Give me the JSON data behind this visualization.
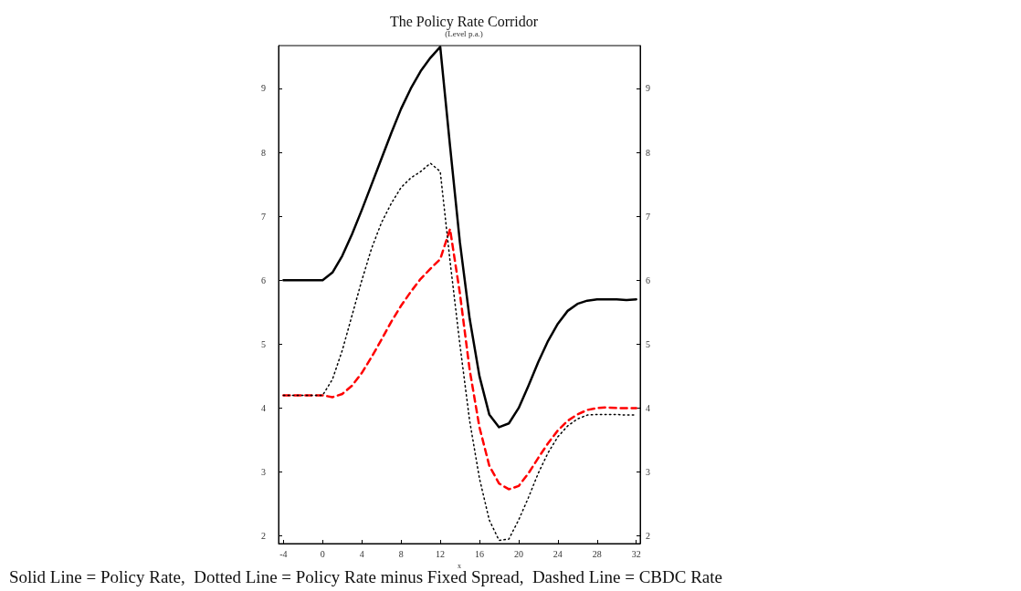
{
  "chart_data": {
    "type": "line",
    "title": "The Policy Rate Corridor",
    "subtitle": "(Level p.a.)",
    "xlabel": "x",
    "annotations": [
      "Solid Line = Policy Rate,  Dotted Line = Policy Rate minus Fixed Spread,  Dashed Line = CBDC Rate"
    ],
    "x": [
      -4,
      -3,
      -2,
      -1,
      0,
      1,
      2,
      3,
      4,
      5,
      6,
      7,
      8,
      9,
      10,
      11,
      12,
      13,
      14,
      15,
      16,
      17,
      18,
      19,
      20,
      21,
      22,
      23,
      24,
      25,
      26,
      27,
      28,
      29,
      30,
      31,
      32
    ],
    "series": [
      {
        "color": "#000000",
        "line_style": "solid",
        "values": [
          6,
          6,
          6,
          6,
          6,
          6.12,
          6.38,
          6.72,
          7.1,
          7.5,
          7.9,
          8.3,
          8.68,
          9.0,
          9.27,
          9.48,
          9.65,
          8.1,
          6.6,
          5.4,
          4.5,
          3.9,
          3.7,
          3.76,
          4.0,
          4.35,
          4.72,
          5.05,
          5.32,
          5.52,
          5.63,
          5.68,
          5.7,
          5.7,
          5.7,
          5.69,
          5.7
        ]
      },
      {
        "color": "#000000",
        "line_style": "dotted",
        "values": [
          4.2,
          4.2,
          4.2,
          4.2,
          4.2,
          4.45,
          4.9,
          5.45,
          6.0,
          6.5,
          6.9,
          7.2,
          7.45,
          7.6,
          7.7,
          7.83,
          7.7,
          6.3,
          5.0,
          3.8,
          2.9,
          2.25,
          1.93,
          1.95,
          2.25,
          2.6,
          2.98,
          3.3,
          3.55,
          3.72,
          3.83,
          3.89,
          3.9,
          3.9,
          3.9,
          3.89,
          3.89
        ]
      },
      {
        "color": "#ff0000",
        "line_style": "dashed",
        "values": [
          4.2,
          4.2,
          4.2,
          4.2,
          4.2,
          4.17,
          4.22,
          4.35,
          4.55,
          4.8,
          5.07,
          5.35,
          5.6,
          5.82,
          6.02,
          6.18,
          6.33,
          6.8,
          5.8,
          4.6,
          3.7,
          3.1,
          2.82,
          2.73,
          2.78,
          2.98,
          3.22,
          3.45,
          3.65,
          3.8,
          3.9,
          3.97,
          4.0,
          4.01,
          4.0,
          4.0,
          4.0
        ]
      }
    ],
    "xlim": [
      -4.5,
      32.4
    ],
    "xticks": [
      -4,
      0,
      4,
      8,
      12,
      16,
      20,
      24,
      28,
      32
    ],
    "ylim": [
      1.88,
      9.67
    ],
    "yticks": [
      2,
      3,
      4,
      5,
      6,
      7,
      8,
      9
    ],
    "y2lim": [
      1.88,
      9.67
    ],
    "y2ticks": [
      2,
      3,
      4,
      5,
      6,
      7,
      8,
      9
    ],
    "grid": false,
    "marker": "none"
  }
}
